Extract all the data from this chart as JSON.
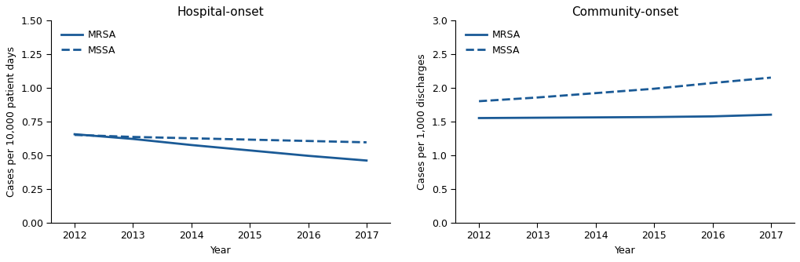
{
  "hospital_onset": {
    "title": "Hospital-onset",
    "ylabel": "Cases per 10,000 patient days",
    "xlabel": "Year",
    "years": [
      2012,
      2013,
      2014,
      2015,
      2016,
      2017
    ],
    "mrsa": [
      0.655,
      0.62,
      0.575,
      0.535,
      0.495,
      0.46
    ],
    "mssa": [
      0.65,
      0.635,
      0.625,
      0.615,
      0.605,
      0.595
    ],
    "ylim": [
      0,
      1.5
    ],
    "yticks": [
      0,
      0.25,
      0.5,
      0.75,
      1.0,
      1.25,
      1.5
    ]
  },
  "community_onset": {
    "title": "Community-onset",
    "ylabel": "Cases per 1,000 discharges",
    "xlabel": "Year",
    "years": [
      2012,
      2013,
      2014,
      2015,
      2016,
      2017
    ],
    "mrsa": [
      1.55,
      1.555,
      1.56,
      1.565,
      1.575,
      1.6
    ],
    "mssa": [
      1.8,
      1.855,
      1.92,
      1.985,
      2.07,
      2.15
    ],
    "ylim": [
      0,
      3.0
    ],
    "yticks": [
      0,
      0.5,
      1.0,
      1.5,
      2.0,
      2.5,
      3.0
    ]
  },
  "line_color": "#1a5a96",
  "line_width": 2.0,
  "legend_mrsa": "MRSA",
  "legend_mssa": "MSSA",
  "title_fontsize": 11,
  "label_fontsize": 9,
  "tick_fontsize": 9,
  "legend_fontsize": 9
}
